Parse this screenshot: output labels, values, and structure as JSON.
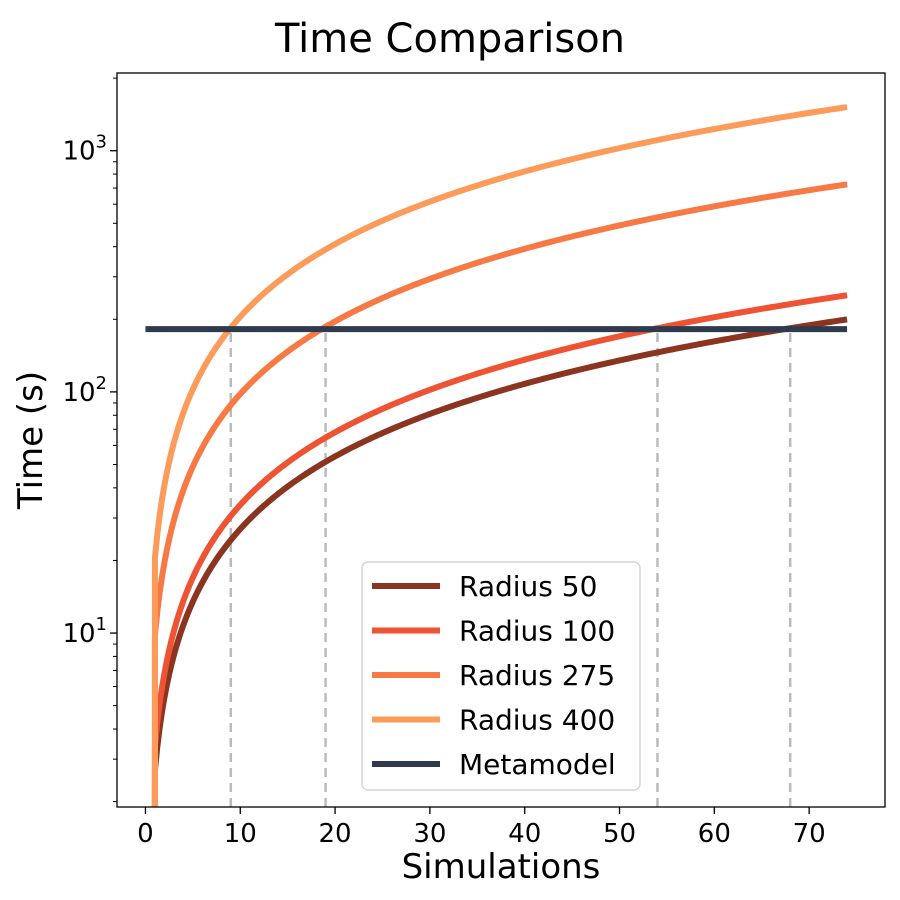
{
  "chart_data": {
    "type": "line",
    "title": "Time Comparison",
    "xlabel": "Simulations",
    "ylabel": "Time (s)",
    "xlim": [
      -3,
      78
    ],
    "ylim": [
      1.9,
      2100
    ],
    "yscale": "log",
    "grid": false,
    "legend_position": "lower-center",
    "x_ticks": [
      0,
      10,
      20,
      30,
      40,
      50,
      60,
      70
    ],
    "y_ticks": [
      {
        "value": 10,
        "base": "10",
        "exp": "1"
      },
      {
        "value": 100,
        "base": "10",
        "exp": "2"
      },
      {
        "value": 1000,
        "base": "10",
        "exp": "3"
      }
    ],
    "series": [
      {
        "name": "Radius 50",
        "color": "#8b3420",
        "per_sim_seconds": 2.7,
        "x": [
          1,
          74
        ]
      },
      {
        "name": "Radius 100",
        "color": "#ee5333",
        "per_sim_seconds": 3.4,
        "x": [
          1,
          74
        ]
      },
      {
        "name": "Radius 275",
        "color": "#f77a45",
        "per_sim_seconds": 9.8,
        "x": [
          1,
          74
        ]
      },
      {
        "name": "Radius 400",
        "color": "#fd9b5a",
        "per_sim_seconds": 20.5,
        "x": [
          1,
          74
        ]
      },
      {
        "name": "Metamodel",
        "color": "#2e3a4e",
        "constant_seconds": 182,
        "x": [
          0,
          74
        ]
      }
    ],
    "crossovers": [
      {
        "x": 9,
        "y": 182
      },
      {
        "x": 19,
        "y": 182
      },
      {
        "x": 54,
        "y": 182
      },
      {
        "x": 68,
        "y": 182
      }
    ]
  }
}
